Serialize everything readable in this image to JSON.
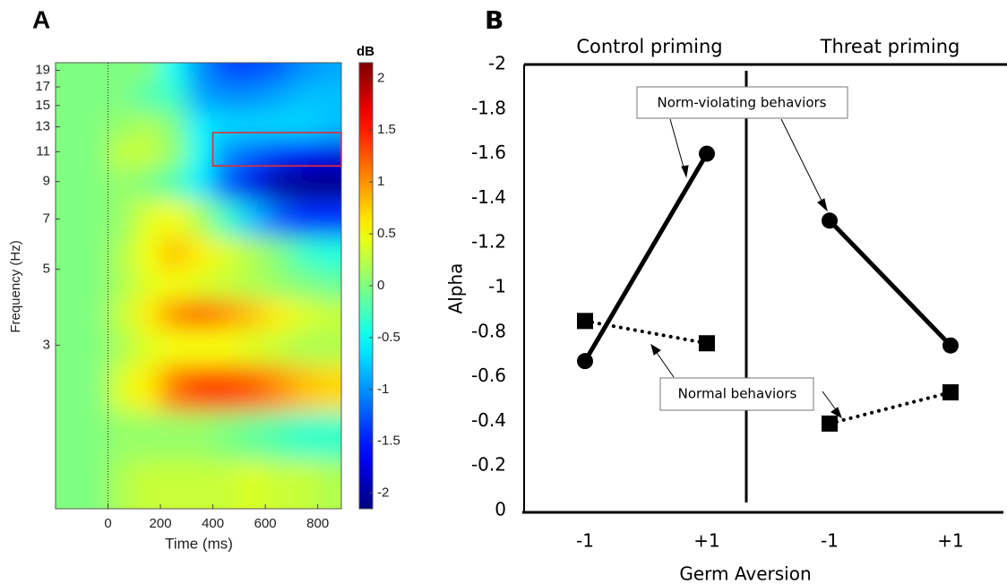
{
  "chart_data": [
    {
      "type": "heatmap",
      "panel": "A",
      "xlabel": "Time (ms)",
      "ylabel": "Frequency (Hz)",
      "colorbar_label": "dB",
      "xlim": [
        -200,
        890
      ],
      "ylim": [
        1,
        20
      ],
      "ylog": true,
      "xticks": [
        0,
        200,
        400,
        600,
        800
      ],
      "yticks": [
        3,
        5,
        7,
        9,
        11,
        13,
        15,
        17,
        19
      ],
      "clim": [
        -2.15,
        2.15
      ],
      "cticks": [
        -2,
        -1.5,
        -1,
        -0.5,
        0,
        0.5,
        1,
        1.5,
        2
      ],
      "colormap": "jet",
      "vline": 0,
      "roi": {
        "xlim": [
          400,
          890
        ],
        "ylim": [
          10,
          12.5
        ],
        "color": "#e0303a"
      },
      "x": [
        -150,
        -50,
        50,
        150,
        250,
        350,
        450,
        550,
        650,
        750,
        850
      ],
      "y": [
        19,
        16,
        13,
        11,
        9,
        7,
        5.5,
        4.5,
        3.7,
        3,
        2.3,
        1.6,
        1.2
      ],
      "z": [
        [
          0,
          0,
          0,
          0,
          -0.5,
          -1.0,
          -1.3,
          -1.3,
          -1.2,
          -1.0,
          -0.9
        ],
        [
          0,
          0,
          0,
          -0.2,
          -0.3,
          -0.9,
          -1.0,
          -1.0,
          -0.9,
          -0.8,
          -0.8
        ],
        [
          0,
          0,
          0.1,
          0.2,
          0,
          -0.6,
          -0.7,
          -0.7,
          -0.7,
          -0.7,
          -0.8
        ],
        [
          0,
          0,
          0.3,
          0.3,
          0.1,
          -0.5,
          -1.0,
          -1.2,
          -1.4,
          -1.6,
          -1.7
        ],
        [
          0,
          0,
          0.1,
          0,
          -0.2,
          -0.6,
          -1.2,
          -1.7,
          -2.0,
          -2.1,
          -2.1
        ],
        [
          0,
          0,
          0.1,
          0.4,
          0.5,
          0.2,
          -0.3,
          -0.8,
          -1.2,
          -1.4,
          -1.4
        ],
        [
          0,
          0,
          0.2,
          0.5,
          0.8,
          0.6,
          0.4,
          0.2,
          0,
          -0.3,
          -0.4
        ],
        [
          0,
          0,
          0.2,
          0.4,
          0.5,
          0.4,
          0.3,
          0.2,
          0.1,
          0,
          -0.1
        ],
        [
          0,
          0,
          0.3,
          0.6,
          1.0,
          1.2,
          1.0,
          0.8,
          0.6,
          0.4,
          0.3
        ],
        [
          0,
          0,
          0.2,
          0.4,
          0.5,
          0.5,
          0.5,
          0.4,
          0.3,
          0.2,
          0.2
        ],
        [
          0,
          0,
          0.4,
          0.6,
          1.1,
          1.3,
          1.3,
          1.2,
          1.0,
          0.8,
          0.7
        ],
        [
          0,
          0,
          0.1,
          0.1,
          0.1,
          0.1,
          0,
          -0.1,
          -0.2,
          -0.3,
          -0.3
        ],
        [
          0,
          0,
          0.2,
          0.3,
          0.3,
          0.3,
          0.3,
          0.4,
          0.3,
          0.3,
          0.2
        ]
      ]
    },
    {
      "type": "line",
      "panel": "B",
      "xlabel": "Germ Aversion",
      "ylabel": "Alpha",
      "groups": [
        "Control priming",
        "Threat priming"
      ],
      "categories": [
        "-1",
        "+1",
        "-1",
        "+1"
      ],
      "ylim": [
        0,
        -2
      ],
      "yticks": [
        0,
        -0.2,
        -0.4,
        -0.6,
        -0.8,
        -1,
        -1.2,
        -1.4,
        -1.6,
        -1.8,
        -2
      ],
      "series": [
        {
          "name": "Norm-violating behaviors",
          "color": "#000000",
          "marker": "circle",
          "dash": "solid",
          "values": [
            -0.67,
            -1.6,
            -1.3,
            -0.74
          ]
        },
        {
          "name": "Normal behaviors",
          "color": "#000000",
          "marker": "square",
          "dash": "dotted",
          "values": [
            -0.85,
            -0.75,
            -0.39,
            -0.53
          ]
        }
      ]
    }
  ]
}
